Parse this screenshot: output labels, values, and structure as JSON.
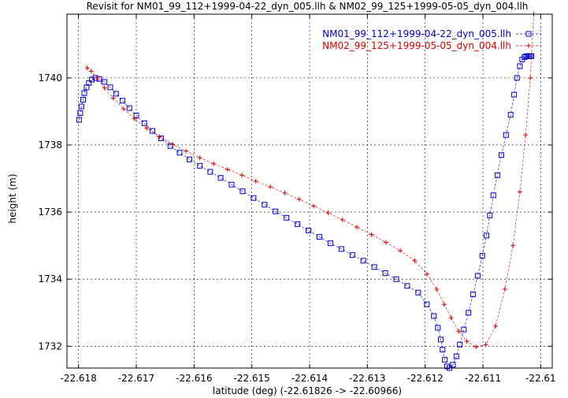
{
  "chart_data": {
    "type": "scatter",
    "title": "Revisit for NM01_99_112+1999-04-22_dyn_005.llh & NM02_99_125+1999-05-05_dyn_004.llh",
    "xlabel": "latitude (deg) (-22.61826 -> -22.60966)",
    "ylabel": "height (m)",
    "xlim": [
      -22.6182,
      -22.6098
    ],
    "ylim": [
      1731.35,
      1741.9
    ],
    "grid": true,
    "legend_position": "top-right",
    "x_ticks": [
      -22.618,
      -22.617,
      -22.616,
      -22.615,
      -22.614,
      -22.613,
      -22.612,
      -22.611,
      -22.61
    ],
    "x_tick_labels": [
      "-22.618",
      "-22.617",
      "-22.616",
      "-22.615",
      "-22.614",
      "-22.613",
      "-22.612",
      "-22.611",
      "-22.61"
    ],
    "y_ticks": [
      1732,
      1734,
      1736,
      1738,
      1740
    ],
    "y_tick_labels": [
      "1732",
      "1734",
      "1736",
      "1738",
      "1740"
    ],
    "series": [
      {
        "name": "NM01_99_112+1999-04-22_dyn_005.llh",
        "color": "#0000cc",
        "marker": "square",
        "x": [
          -22.61799,
          -22.61797,
          -22.61795,
          -22.61792,
          -22.6179,
          -22.61786,
          -22.61782,
          -22.61777,
          -22.61771,
          -22.61764,
          -22.61755,
          -22.61745,
          -22.61735,
          -22.61724,
          -22.61712,
          -22.617,
          -22.61686,
          -22.61672,
          -22.61657,
          -22.61641,
          -22.61625,
          -22.61608,
          -22.6159,
          -22.61572,
          -22.61554,
          -22.61535,
          -22.61516,
          -22.61497,
          -22.61478,
          -22.61459,
          -22.6144,
          -22.61421,
          -22.61402,
          -22.61383,
          -22.61364,
          -22.61345,
          -22.61326,
          -22.61307,
          -22.61288,
          -22.61269,
          -22.6125,
          -22.61231,
          -22.61212,
          -22.61197,
          -22.61185,
          -22.61178,
          -22.61173,
          -22.6117,
          -22.61166,
          -22.61162,
          -22.61158,
          -22.61152,
          -22.61146,
          -22.6114,
          -22.61133,
          -22.61125,
          -22.61117,
          -22.61109,
          -22.61101,
          -22.61094,
          -22.61088,
          -22.61082,
          -22.61075,
          -22.61068,
          -22.6106,
          -22.61052,
          -22.61046,
          -22.61041,
          -22.61036,
          -22.61032,
          -22.61028,
          -22.61025,
          -22.61022,
          -22.6102,
          -22.61018,
          -22.61016
        ],
        "y": [
          1738.75,
          1738.95,
          1739.15,
          1739.35,
          1739.55,
          1739.72,
          1739.85,
          1739.95,
          1740.0,
          1739.97,
          1739.88,
          1739.72,
          1739.53,
          1739.32,
          1739.1,
          1738.88,
          1738.65,
          1738.42,
          1738.2,
          1737.97,
          1737.77,
          1737.57,
          1737.38,
          1737.2,
          1737.02,
          1736.82,
          1736.62,
          1736.42,
          1736.22,
          1736.02,
          1735.83,
          1735.64,
          1735.45,
          1735.26,
          1735.07,
          1734.9,
          1734.72,
          1734.55,
          1734.36,
          1734.18,
          1734.0,
          1733.8,
          1733.6,
          1733.25,
          1732.9,
          1732.55,
          1732.2,
          1731.9,
          1731.6,
          1731.4,
          1731.35,
          1731.45,
          1731.7,
          1732.05,
          1732.5,
          1733.0,
          1733.55,
          1734.1,
          1734.7,
          1735.3,
          1735.9,
          1736.5,
          1737.1,
          1737.7,
          1738.3,
          1738.9,
          1739.5,
          1740.0,
          1740.35,
          1740.55,
          1740.62,
          1740.65,
          1740.65,
          1740.65,
          1740.65,
          1740.65
        ]
      },
      {
        "name": "NM02_99_125+1999-05-05_dyn_004.llh",
        "color": "#dd0000",
        "marker": "plus",
        "x": [
          -22.61785,
          -22.61778,
          -22.61768,
          -22.61755,
          -22.6174,
          -22.61722,
          -22.61703,
          -22.61682,
          -22.6166,
          -22.61637,
          -22.61614,
          -22.6159,
          -22.61566,
          -22.61542,
          -22.61517,
          -22.61493,
          -22.61468,
          -22.61443,
          -22.61418,
          -22.61393,
          -22.61368,
          -22.61343,
          -22.61318,
          -22.61293,
          -22.61268,
          -22.61243,
          -22.61218,
          -22.61197,
          -22.6118,
          -22.61167,
          -22.61155,
          -22.61142,
          -22.61128,
          -22.61112,
          -22.61095,
          -22.61078,
          -22.61062,
          -22.61048,
          -22.61036,
          -22.61026,
          -22.61018,
          -22.61012
        ],
        "y": [
          1740.3,
          1740.2,
          1740.0,
          1739.7,
          1739.4,
          1739.08,
          1738.78,
          1738.5,
          1738.25,
          1738.02,
          1737.82,
          1737.62,
          1737.44,
          1737.27,
          1737.1,
          1736.92,
          1736.75,
          1736.57,
          1736.38,
          1736.18,
          1735.98,
          1735.77,
          1735.55,
          1735.33,
          1735.1,
          1734.85,
          1734.55,
          1734.15,
          1733.7,
          1733.25,
          1732.85,
          1732.45,
          1732.15,
          1731.98,
          1732.05,
          1732.6,
          1733.7,
          1735.0,
          1736.6,
          1738.3,
          1740.0,
          1741.9
        ]
      }
    ]
  }
}
